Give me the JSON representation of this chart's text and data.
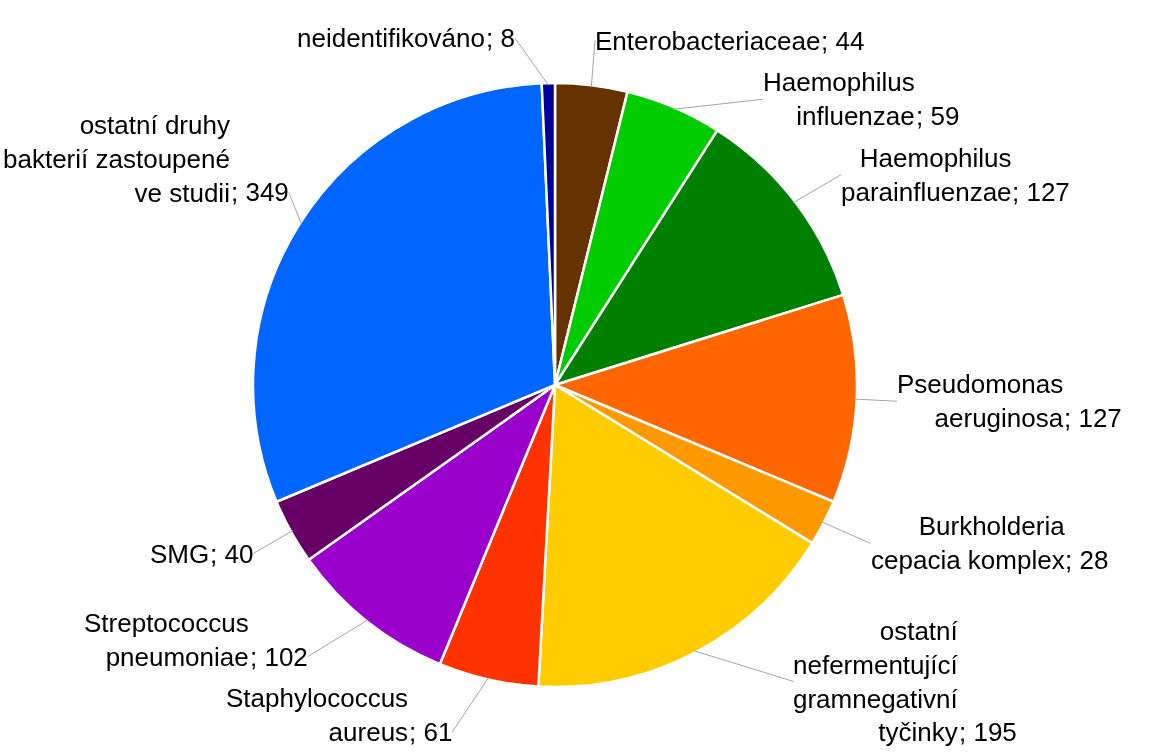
{
  "chart_data": {
    "type": "pie",
    "categories": [
      "Enterobacteriaceae",
      "Haemophilus influenzae",
      "Haemophilus parainfluenzae",
      "Pseudomonas aeruginosa",
      "Burkholderia cepacia komplex",
      "ostatní nefermentující gramnegativní tyčinky",
      "Staphylococcus aureus",
      "Streptococcus pneumoniae",
      "SMG",
      "ostatní druhy bakterií zastoupené ve studii",
      "neidentifikováno"
    ],
    "values": [
      44,
      59,
      127,
      127,
      28,
      195,
      61,
      102,
      40,
      349,
      8
    ],
    "value_labels": [
      "; 44",
      "; 59",
      "; 127",
      "; 127",
      "; 28",
      "; 195",
      "; 61",
      "; 102",
      "; 40",
      "; 349",
      "; 8"
    ],
    "colors": [
      "#663300",
      "#00cc00",
      "#008000",
      "#ff6600",
      "#ff9900",
      "#ffcc00",
      "#ff3300",
      "#9900cc",
      "#660066",
      "#0066ff",
      "#000099"
    ]
  }
}
